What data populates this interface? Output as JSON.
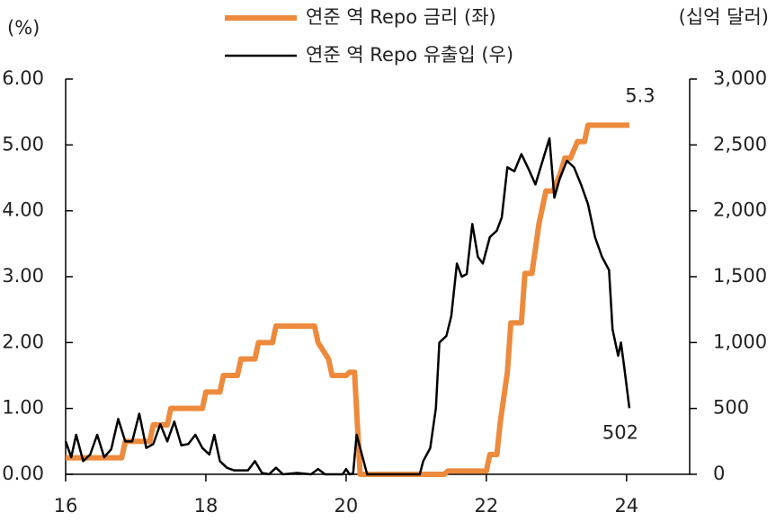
{
  "chart_data": {
    "type": "line",
    "y_unit_label": "(%)",
    "y2_unit_label": "(십억 달러)",
    "xlim": [
      16,
      24.9
    ],
    "xticks": [
      16,
      18,
      20,
      22,
      24
    ],
    "ylim": [
      0,
      6
    ],
    "yticks": [
      {
        "value": 0,
        "label": "0.00"
      },
      {
        "value": 1,
        "label": "1.00"
      },
      {
        "value": 2,
        "label": "2.00"
      },
      {
        "value": 3,
        "label": "3.00"
      },
      {
        "value": 4,
        "label": "4.00"
      },
      {
        "value": 5,
        "label": "5.00"
      },
      {
        "value": 6,
        "label": "6.00"
      }
    ],
    "y2lim": [
      0,
      3000
    ],
    "y2ticks": [
      0,
      500,
      {
        "value": 1000,
        "label": "1,000"
      },
      {
        "value": 1500,
        "label": "1,500"
      },
      {
        "value": 2000,
        "label": "2,000"
      },
      {
        "value": 2500,
        "label": "2,500"
      },
      {
        "value": 3000,
        "label": "3,000"
      }
    ],
    "legend": "top",
    "series": [
      {
        "name": "연준 역 Repo 금리 (좌)",
        "color": "#ed8a3c",
        "axis": "y",
        "width": 6,
        "x": [
          16.0,
          16.8,
          16.85,
          17.2,
          17.25,
          17.45,
          17.5,
          17.95,
          18.0,
          18.2,
          18.25,
          18.45,
          18.5,
          18.7,
          18.75,
          18.95,
          19.0,
          19.55,
          19.6,
          19.75,
          19.8,
          20.0,
          20.05,
          20.12,
          20.2,
          21.4,
          21.45,
          22.0,
          22.05,
          22.15,
          22.2,
          22.3,
          22.35,
          22.5,
          22.55,
          22.65,
          22.75,
          22.85,
          22.95,
          23.05,
          23.12,
          23.2,
          23.3,
          23.4,
          23.45,
          24.04
        ],
        "values": [
          0.25,
          0.25,
          0.5,
          0.5,
          0.75,
          0.75,
          1.0,
          1.0,
          1.25,
          1.25,
          1.5,
          1.5,
          1.75,
          1.75,
          2.0,
          2.0,
          2.25,
          2.25,
          2.0,
          1.75,
          1.5,
          1.5,
          1.55,
          1.55,
          0.0,
          0.0,
          0.05,
          0.05,
          0.3,
          0.3,
          0.8,
          1.55,
          2.3,
          2.3,
          3.05,
          3.05,
          3.8,
          4.3,
          4.3,
          4.55,
          4.8,
          4.8,
          5.05,
          5.05,
          5.3,
          5.3
        ]
      },
      {
        "name": "연준 역 Repo 유출입 (우)",
        "color": "#000000",
        "axis": "y2",
        "width": 2.5,
        "x": [
          16.0,
          16.08,
          16.15,
          16.25,
          16.35,
          16.45,
          16.55,
          16.65,
          16.75,
          16.85,
          16.95,
          17.05,
          17.15,
          17.25,
          17.35,
          17.45,
          17.55,
          17.65,
          17.75,
          17.85,
          17.95,
          18.05,
          18.12,
          18.2,
          18.3,
          18.4,
          18.6,
          18.7,
          18.8,
          18.9,
          19.0,
          19.1,
          19.3,
          19.5,
          19.6,
          19.7,
          19.95,
          20.0,
          20.05,
          20.1,
          20.15,
          20.25,
          20.3,
          21.05,
          21.1,
          21.2,
          21.28,
          21.33,
          21.43,
          21.5,
          21.58,
          21.65,
          21.72,
          21.8,
          21.88,
          21.95,
          22.05,
          22.15,
          22.22,
          22.3,
          22.4,
          22.5,
          22.6,
          22.7,
          22.9,
          22.97,
          23.05,
          23.15,
          23.25,
          23.35,
          23.45,
          23.55,
          23.65,
          23.75,
          23.8,
          23.88,
          23.92,
          23.97,
          24.04
        ],
        "values": [
          250,
          130,
          300,
          100,
          150,
          300,
          130,
          190,
          420,
          250,
          250,
          460,
          200,
          230,
          380,
          250,
          400,
          220,
          230,
          300,
          200,
          150,
          300,
          100,
          50,
          30,
          30,
          100,
          10,
          0,
          50,
          0,
          10,
          0,
          40,
          0,
          0,
          40,
          0,
          5,
          300,
          100,
          0,
          0,
          100,
          200,
          500,
          1000,
          1050,
          1200,
          1600,
          1500,
          1520,
          1900,
          1650,
          1600,
          1800,
          1850,
          1950,
          2330,
          2300,
          2430,
          2320,
          2200,
          2550,
          2100,
          2250,
          2380,
          2330,
          2200,
          2050,
          1800,
          1650,
          1550,
          1100,
          900,
          1000,
          800,
          502
        ]
      }
    ]
  }
}
